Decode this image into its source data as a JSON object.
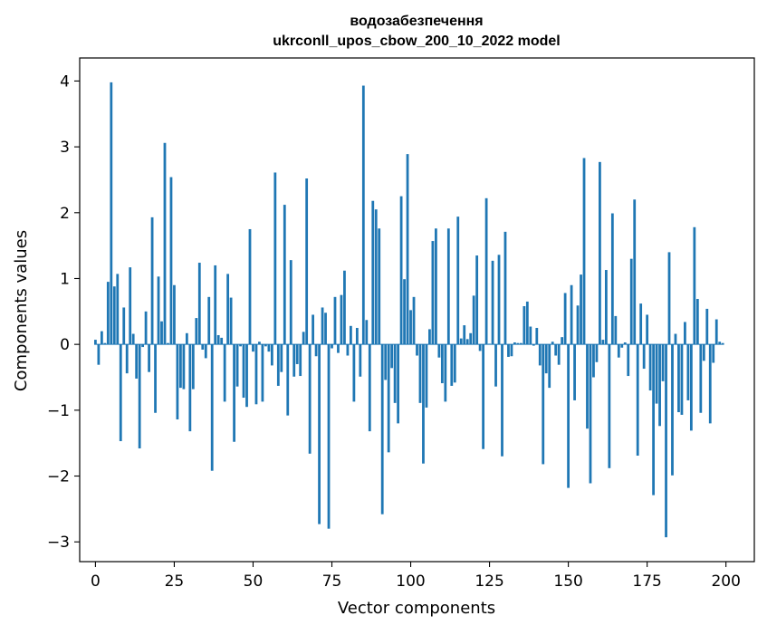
{
  "chart_data": {
    "type": "bar",
    "title": "водозабезпечення",
    "subtitle": "ukrconll_upos_cbow_200_10_2022 model",
    "xlabel": "Vector components",
    "ylabel": "Components values",
    "xlim": [
      -5,
      209
    ],
    "ylim": [
      -3.3,
      4.35
    ],
    "xticks": [
      0,
      25,
      50,
      75,
      100,
      125,
      150,
      175,
      200
    ],
    "xtick_labels": [
      "0",
      "25",
      "50",
      "75",
      "100",
      "125",
      "150",
      "175",
      "200"
    ],
    "yticks": [
      -3,
      -2,
      -1,
      0,
      1,
      2,
      3,
      4
    ],
    "ytick_labels": [
      "−3",
      "−2",
      "−1",
      "0",
      "1",
      "2",
      "3",
      "4"
    ],
    "grid": false,
    "series": [
      {
        "color": "#1f77b4",
        "x": [
          0,
          1,
          2,
          3,
          4,
          5,
          6,
          7,
          8,
          9,
          10,
          11,
          12,
          13,
          14,
          15,
          16,
          17,
          18,
          19,
          20,
          21,
          22,
          23,
          24,
          25,
          26,
          27,
          28,
          29,
          30,
          31,
          32,
          33,
          34,
          35,
          36,
          37,
          38,
          39,
          40,
          41,
          42,
          43,
          44,
          45,
          46,
          47,
          48,
          49,
          50,
          51,
          52,
          53,
          54,
          55,
          56,
          57,
          58,
          59,
          60,
          61,
          62,
          63,
          64,
          65,
          66,
          67,
          68,
          69,
          70,
          71,
          72,
          73,
          74,
          75,
          76,
          77,
          78,
          79,
          80,
          81,
          82,
          83,
          84,
          85,
          86,
          87,
          88,
          89,
          90,
          91,
          92,
          93,
          94,
          95,
          96,
          97,
          98,
          99,
          100,
          101,
          102,
          103,
          104,
          105,
          106,
          107,
          108,
          109,
          110,
          111,
          112,
          113,
          114,
          115,
          116,
          117,
          118,
          119,
          120,
          121,
          122,
          123,
          124,
          125,
          126,
          127,
          128,
          129,
          130,
          131,
          132,
          133,
          134,
          135,
          136,
          137,
          138,
          139,
          140,
          141,
          142,
          143,
          144,
          145,
          146,
          147,
          148,
          149,
          150,
          151,
          152,
          153,
          154,
          155,
          156,
          157,
          158,
          159,
          160,
          161,
          162,
          163,
          164,
          165,
          166,
          167,
          168,
          169,
          170,
          171,
          172,
          173,
          174,
          175,
          176,
          177,
          178,
          179,
          180,
          181,
          182,
          183,
          184,
          185,
          186,
          187,
          188,
          189,
          190,
          191,
          192,
          193,
          194,
          195,
          196,
          197,
          198,
          199
        ],
        "values": [
          0.07,
          -0.31,
          0.2,
          0.02,
          0.95,
          3.98,
          0.88,
          1.07,
          -1.47,
          0.56,
          -0.44,
          1.17,
          0.16,
          -0.52,
          -1.58,
          -0.04,
          0.5,
          -0.42,
          1.93,
          -1.04,
          1.03,
          0.35,
          3.06,
          0.02,
          2.54,
          0.9,
          -1.14,
          -0.66,
          -0.68,
          0.17,
          -1.32,
          -0.68,
          0.4,
          1.24,
          -0.08,
          -0.21,
          0.72,
          -1.92,
          1.2,
          0.14,
          0.1,
          -0.87,
          1.07,
          0.71,
          -1.48,
          -0.64,
          -0.03,
          -0.81,
          -0.95,
          1.75,
          -0.11,
          -0.91,
          0.04,
          -0.87,
          -0.03,
          -0.11,
          -0.32,
          2.61,
          -0.63,
          -0.42,
          2.12,
          -1.08,
          1.28,
          -0.49,
          -0.3,
          -0.48,
          0.19,
          2.52,
          -1.66,
          0.45,
          -0.18,
          -2.73,
          0.56,
          0.48,
          -2.8,
          -0.06,
          0.72,
          -0.13,
          0.75,
          1.12,
          -0.17,
          0.28,
          -0.87,
          0.25,
          -0.49,
          3.93,
          0.37,
          -1.32,
          2.18,
          2.05,
          1.76,
          -2.58,
          -0.54,
          -1.64,
          -0.36,
          -0.89,
          -1.2,
          2.25,
          0.99,
          2.89,
          0.52,
          0.72,
          -0.17,
          -0.89,
          -1.81,
          -0.96,
          0.23,
          1.57,
          1.76,
          -0.2,
          -0.59,
          -0.87,
          1.76,
          -0.63,
          -0.58,
          1.94,
          0.09,
          0.29,
          0.08,
          0.17,
          0.74,
          1.35,
          -0.1,
          -1.59,
          2.22,
          0.01,
          1.27,
          -0.64,
          1.36,
          -1.7,
          1.71,
          -0.19,
          -0.18,
          0.03,
          0.02,
          0.02,
          0.58,
          0.65,
          0.27,
          -0.02,
          0.25,
          -0.32,
          -1.82,
          -0.44,
          -0.66,
          0.04,
          -0.17,
          -0.31,
          0.11,
          0.78,
          -2.18,
          0.9,
          -0.85,
          0.59,
          1.06,
          2.83,
          -1.28,
          -2.11,
          -0.5,
          -0.27,
          2.77,
          0.07,
          1.13,
          -1.88,
          1.99,
          0.43,
          -0.2,
          -0.05,
          0.03,
          -0.48,
          1.3,
          2.2,
          -1.69,
          0.62,
          -0.37,
          0.45,
          -0.7,
          -2.29,
          -0.9,
          -1.24,
          -0.56,
          -2.93,
          1.4,
          -1.99,
          0.16,
          -1.03,
          -1.07,
          0.34,
          -0.85,
          -1.31,
          1.78,
          0.69,
          -1.04,
          -0.25,
          0.54,
          -1.2,
          -0.28,
          0.38,
          0.04,
          0.02
        ]
      }
    ]
  }
}
